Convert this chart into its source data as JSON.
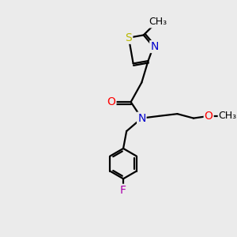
{
  "background_color": "#ebebeb",
  "bond_color": "#000000",
  "atom_colors": {
    "S": "#b8b800",
    "N": "#0000cc",
    "O": "#ff0000",
    "F": "#aa00aa",
    "C": "#000000"
  },
  "figsize": [
    3.0,
    3.0
  ],
  "dpi": 100,
  "font_size": 10,
  "font_size_small": 9,
  "lw": 1.6
}
